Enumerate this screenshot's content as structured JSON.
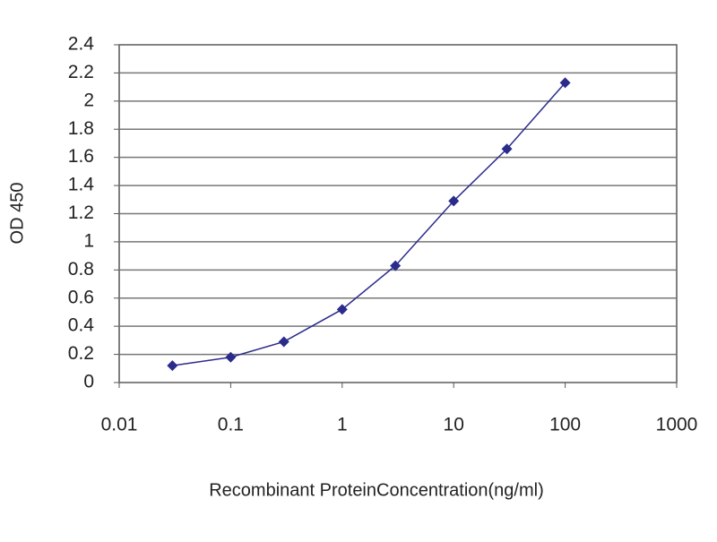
{
  "chart_data": {
    "type": "line",
    "xlabel": "Recombinant ProteinConcentration(ng/ml)",
    "ylabel": "OD 450",
    "x": [
      0.03,
      0.1,
      0.3,
      1,
      3,
      10,
      30,
      100
    ],
    "series": [
      {
        "color": "#2b2b8c",
        "values": [
          0.12,
          0.18,
          0.29,
          0.52,
          0.83,
          1.29,
          1.66,
          2.13
        ]
      }
    ],
    "xscale": "log",
    "xlim": [
      0.01,
      1000
    ],
    "xticks": [
      0.01,
      0.1,
      1,
      10,
      100,
      1000
    ],
    "ylim": [
      0,
      2.4
    ],
    "yticks": [
      0,
      0.2,
      0.4,
      0.6,
      0.8,
      1,
      1.2,
      1.4,
      1.6,
      1.8,
      2,
      2.2,
      2.4
    ],
    "grid": true
  }
}
